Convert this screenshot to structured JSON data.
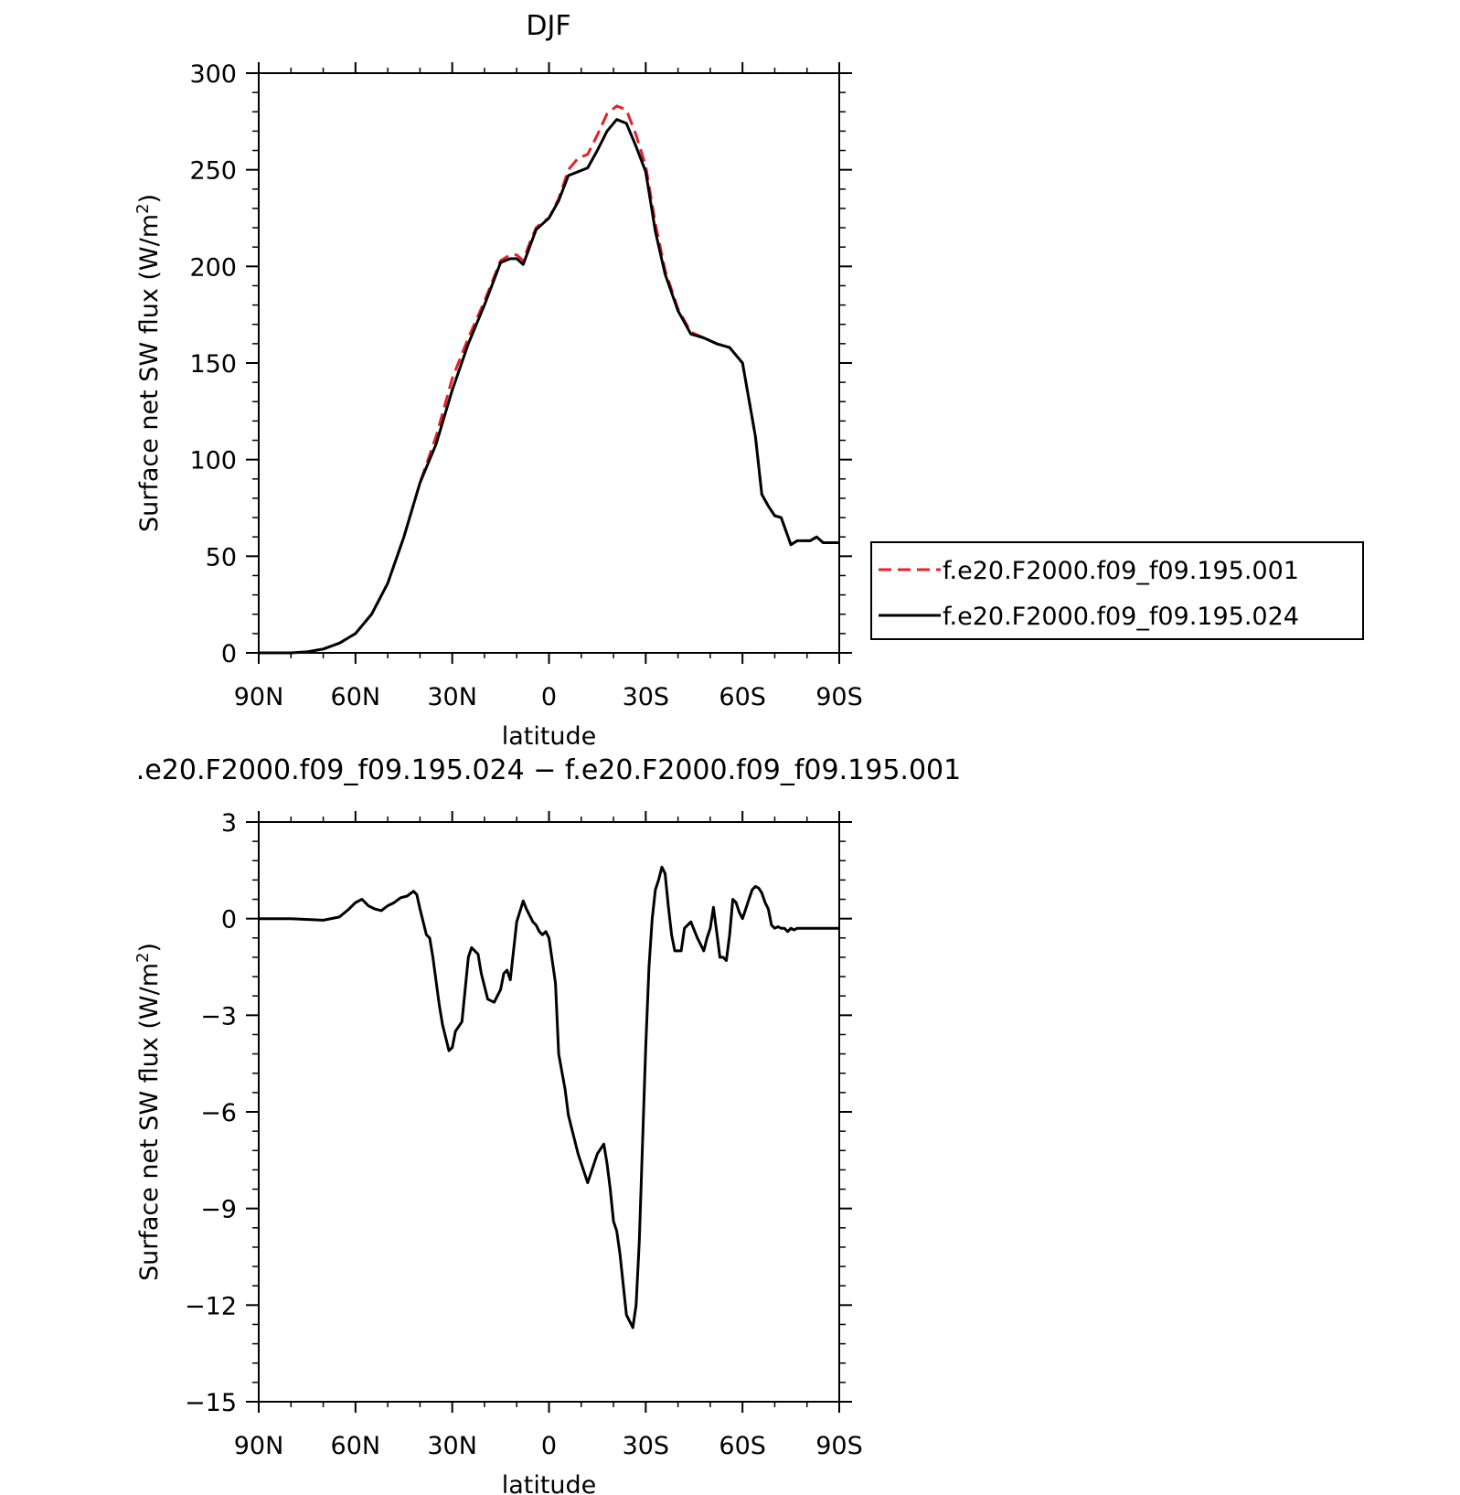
{
  "chart_data": [
    {
      "type": "line",
      "title": "DJF",
      "xlabel": "latitude",
      "ylabel": "Surface net SW flux (W/m",
      "ylabel_sup": "2",
      "ylabel_close": ")",
      "xlim": [
        90,
        -90
      ],
      "ylim": [
        0,
        300
      ],
      "x_ticks": [
        90,
        60,
        30,
        0,
        -30,
        -60,
        -90
      ],
      "x_tick_labels": [
        "90N",
        "60N",
        "30N",
        "0",
        "30S",
        "60S",
        "90S"
      ],
      "y_ticks": [
        0,
        50,
        100,
        150,
        200,
        250,
        300
      ],
      "y_tick_labels": [
        "0",
        "50",
        "100",
        "150",
        "200",
        "250",
        "300"
      ],
      "grid": false,
      "legend_position": "outside-right-bottom",
      "series": [
        {
          "name": "f.e20.F2000.f09_f09.195.001",
          "color": "#e8202a",
          "dash": "dashed",
          "x": [
            90,
            80,
            75,
            70,
            65,
            60,
            55,
            50,
            45,
            40,
            35,
            30,
            25,
            20,
            15,
            12,
            10,
            8,
            6,
            4,
            2,
            0,
            -3,
            -6,
            -9,
            -12,
            -15,
            -18,
            -21,
            -24,
            -27,
            -30,
            -33,
            -36,
            -40,
            -44,
            -48,
            -52,
            -56,
            -60,
            -64,
            -66,
            -68,
            -70,
            -72,
            -75,
            -77,
            -79,
            -81,
            -83,
            -85,
            -87,
            -90
          ],
          "y": [
            0,
            0,
            0.5,
            2,
            5,
            10,
            20,
            36,
            60,
            88,
            112,
            142,
            163,
            182,
            203,
            206,
            206,
            203,
            212,
            220,
            223,
            225,
            235,
            250,
            256,
            258,
            268,
            279,
            283,
            281,
            268,
            252,
            222,
            198,
            178,
            166,
            163,
            160,
            158,
            150,
            112,
            82,
            76,
            71,
            70,
            56,
            58,
            58,
            58,
            60,
            57,
            57,
            57
          ]
        },
        {
          "name": "f.e20.F2000.f09_f09.195.024",
          "color": "#000000",
          "dash": "solid",
          "x": [
            90,
            80,
            75,
            70,
            65,
            60,
            55,
            50,
            45,
            40,
            35,
            30,
            25,
            20,
            15,
            12,
            10,
            8,
            6,
            4,
            2,
            0,
            -3,
            -6,
            -9,
            -12,
            -15,
            -18,
            -21,
            -24,
            -27,
            -30,
            -33,
            -36,
            -40,
            -44,
            -48,
            -52,
            -56,
            -60,
            -64,
            -66,
            -68,
            -70,
            -72,
            -75,
            -77,
            -79,
            -81,
            -83,
            -85,
            -87,
            -90
          ],
          "y": [
            0,
            0,
            0.5,
            2,
            5,
            10,
            20,
            36,
            60,
            88,
            108,
            136,
            160,
            180,
            202,
            204,
            204,
            201,
            210,
            219,
            222,
            225,
            234,
            247,
            249,
            251,
            260,
            270,
            276,
            274,
            262,
            249,
            218,
            196,
            177,
            165,
            163,
            160,
            158,
            150,
            112,
            82,
            76,
            71,
            70,
            56,
            58,
            58,
            58,
            60,
            57,
            57,
            57
          ]
        }
      ]
    },
    {
      "type": "line",
      "title": ".e20.F2000.f09_f09.195.024 − f.e20.F2000.f09_f09.195.001",
      "xlabel": "latitude",
      "ylabel": "Surface net SW flux (W/m",
      "ylabel_sup": "2",
      "ylabel_close": ")",
      "xlim": [
        90,
        -90
      ],
      "ylim": [
        -15,
        3
      ],
      "x_ticks": [
        90,
        60,
        30,
        0,
        -30,
        -60,
        -90
      ],
      "x_tick_labels": [
        "90N",
        "60N",
        "30N",
        "0",
        "30S",
        "60S",
        "90S"
      ],
      "y_ticks": [
        3,
        0,
        -3,
        -6,
        -9,
        -12,
        -15
      ],
      "y_tick_labels": [
        "3",
        "0",
        "−3",
        "−6",
        "−9",
        "−12",
        "−15"
      ],
      "grid": false,
      "series": [
        {
          "color": "#000000",
          "dash": "solid",
          "x": [
            90,
            80,
            70,
            65,
            62,
            60,
            58,
            56,
            54,
            52,
            50,
            48,
            46,
            44,
            42,
            41,
            40,
            38,
            37,
            36,
            34,
            33,
            31,
            30,
            29,
            27,
            25,
            24,
            22,
            21,
            19,
            17,
            15,
            14,
            13,
            12,
            10,
            8,
            7,
            5,
            4,
            3,
            2,
            1,
            0,
            -2,
            -3,
            -5,
            -6,
            -7,
            -9,
            -12,
            -13,
            -15,
            -17,
            -18,
            -19,
            -20,
            -21,
            -22,
            -24,
            -26,
            -27,
            -28,
            -29,
            -30,
            -31,
            -32,
            -33,
            -34,
            -35,
            -36,
            -37,
            -38,
            -39,
            -41,
            -42,
            -44,
            -46,
            -48,
            -49,
            -50,
            -51,
            -52,
            -53,
            -54,
            -55,
            -56,
            -57,
            -58,
            -59,
            -60,
            -61,
            -62,
            -63,
            -64,
            -65,
            -66,
            -67,
            -68,
            -69,
            -70,
            -71,
            -72,
            -73,
            -74,
            -75,
            -76,
            -77,
            -78,
            -79,
            -80,
            -81,
            -82,
            -83,
            -84,
            -85,
            -86,
            -87,
            -88,
            -89,
            -90
          ],
          "y": [
            0,
            0,
            -0.05,
            0.05,
            0.3,
            0.5,
            0.6,
            0.4,
            0.3,
            0.25,
            0.4,
            0.5,
            0.65,
            0.7,
            0.85,
            0.75,
            0.3,
            -0.5,
            -0.6,
            -1.2,
            -2.7,
            -3.3,
            -4.1,
            -4.0,
            -3.5,
            -3.2,
            -1.2,
            -0.9,
            -1.1,
            -1.7,
            -2.5,
            -2.6,
            -2.2,
            -1.7,
            -1.6,
            -1.9,
            -0.1,
            0.55,
            0.3,
            -0.1,
            -0.2,
            -0.4,
            -0.5,
            -0.4,
            -0.6,
            -2.0,
            -4.2,
            -5.3,
            -6.1,
            -6.5,
            -7.3,
            -8.2,
            -7.9,
            -7.3,
            -7.0,
            -7.6,
            -8.4,
            -9.4,
            -9.7,
            -10.4,
            -12.3,
            -12.7,
            -12.0,
            -10.0,
            -7.0,
            -4.0,
            -1.5,
            0.0,
            0.9,
            1.2,
            1.6,
            1.4,
            0.4,
            -0.5,
            -1.0,
            -1.0,
            -0.3,
            -0.1,
            -0.6,
            -1.0,
            -0.6,
            -0.3,
            0.35,
            -0.4,
            -1.2,
            -1.2,
            -1.3,
            -0.5,
            0.6,
            0.5,
            0.2,
            0.0,
            0.3,
            0.6,
            0.9,
            1.0,
            0.95,
            0.8,
            0.5,
            0.3,
            -0.2,
            -0.3,
            -0.25,
            -0.3,
            -0.3,
            -0.4,
            -0.3,
            -0.35,
            -0.3,
            -0.3,
            -0.3,
            -0.3,
            -0.3,
            -0.3,
            -0.3,
            -0.3,
            -0.3,
            -0.3,
            -0.3,
            -0.3,
            -0.3,
            -0.3
          ]
        }
      ]
    }
  ]
}
